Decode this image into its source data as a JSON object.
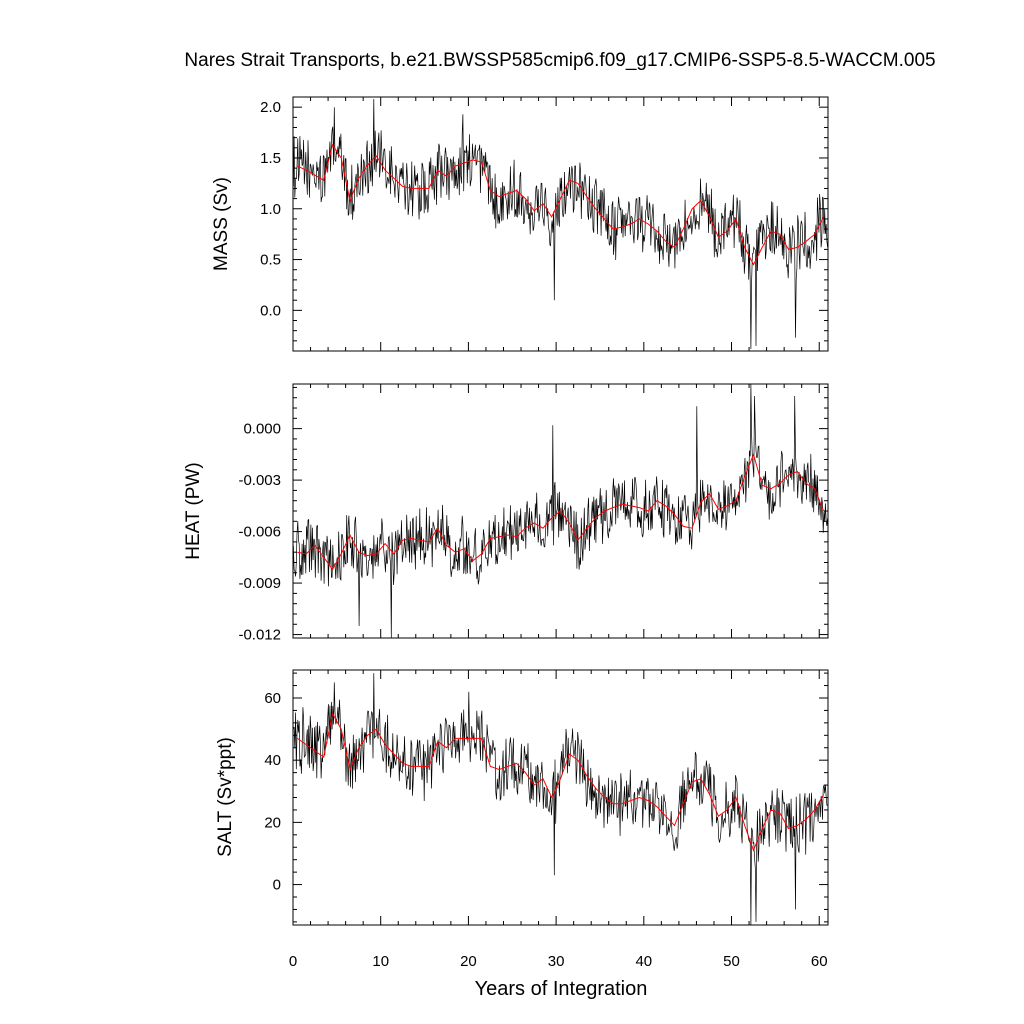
{
  "chart_data": {
    "title": "Nares Strait Transports, b.e21.BWSSP585cmip6.f09_g17.CMIP6-SSP5-8.5-WACCM.005",
    "xlabel": "Years of Integration",
    "xlim": [
      0,
      61
    ],
    "xticks": [
      0,
      10,
      20,
      30,
      40,
      50,
      60
    ],
    "xtick_labels": [
      "0",
      "10",
      "20",
      "30",
      "40",
      "50",
      "60"
    ],
    "colors": {
      "monthly": "#000000",
      "annual": "#ff0000"
    },
    "panels": [
      {
        "type": "line",
        "ylabel": "MASS (Sv)",
        "ylim": [
          -0.4,
          2.1
        ],
        "yticks": [
          0.0,
          0.5,
          1.0,
          1.5,
          2.0
        ],
        "ytick_labels": [
          "0.0",
          "0.5",
          "1.0",
          "1.5",
          "2.0"
        ],
        "annual_years": [
          0.5,
          1.5,
          2.5,
          3.5,
          4.5,
          5.5,
          6.5,
          7.5,
          8.5,
          9.5,
          10.5,
          11.5,
          12.5,
          13.5,
          14.5,
          15.5,
          16.5,
          17.5,
          18.5,
          19.5,
          20.5,
          21.5,
          22.5,
          23.5,
          24.5,
          25.5,
          26.5,
          27.5,
          28.5,
          29.5,
          30.5,
          31.5,
          32.5,
          33.5,
          34.5,
          35.5,
          36.5,
          37.5,
          38.5,
          39.5,
          40.5,
          41.5,
          42.5,
          43.5,
          44.5,
          45.5,
          46.5,
          47.5,
          48.5,
          49.5,
          50.5,
          51.5,
          52.5,
          53.5,
          54.5,
          55.5,
          56.5,
          57.5,
          58.5,
          59.5,
          60.5
        ],
        "annual_values": [
          1.42,
          1.38,
          1.33,
          1.28,
          1.63,
          1.5,
          1.08,
          1.3,
          1.43,
          1.52,
          1.38,
          1.3,
          1.22,
          1.2,
          1.2,
          1.2,
          1.38,
          1.32,
          1.42,
          1.45,
          1.48,
          1.46,
          1.18,
          1.12,
          1.15,
          1.18,
          1.1,
          0.98,
          1.05,
          0.92,
          1.1,
          1.28,
          1.25,
          1.12,
          1.0,
          0.9,
          0.8,
          0.82,
          0.85,
          0.9,
          0.85,
          0.78,
          0.68,
          0.62,
          0.8,
          1.0,
          1.08,
          0.92,
          0.72,
          0.78,
          0.9,
          0.62,
          0.45,
          0.62,
          0.78,
          0.75,
          0.6,
          0.62,
          0.68,
          0.75,
          0.92
        ],
        "monthly_base": [
          1.42,
          1.38,
          1.33,
          1.28,
          1.63,
          1.5,
          1.08,
          1.3,
          1.43,
          1.52,
          1.38,
          1.3,
          1.22,
          1.2,
          1.2,
          1.2,
          1.38,
          1.32,
          1.42,
          1.45,
          1.48,
          1.46,
          1.18,
          1.12,
          1.15,
          1.18,
          1.1,
          0.98,
          1.05,
          0.92,
          1.1,
          1.28,
          1.25,
          1.12,
          1.0,
          0.9,
          0.8,
          0.82,
          0.85,
          0.9,
          0.85,
          0.78,
          0.68,
          0.62,
          0.8,
          1.0,
          1.08,
          0.92,
          0.72,
          0.78,
          0.9,
          0.62,
          0.45,
          0.62,
          0.78,
          0.75,
          0.6,
          0.62,
          0.68,
          0.75,
          0.92
        ],
        "monthly_amplitude": 0.27,
        "monthly_extremes": [
          [
            9.2,
            2.08
          ],
          [
            4.7,
            2.0
          ],
          [
            52.2,
            -0.38
          ],
          [
            52.8,
            -0.35
          ],
          [
            29.8,
            0.1
          ],
          [
            57.3,
            -0.27
          ],
          [
            19.4,
            1.93
          ]
        ]
      },
      {
        "type": "line",
        "ylabel": "HEAT (PW)",
        "ylim": [
          -0.0122,
          0.0026
        ],
        "yticks": [
          -0.012,
          -0.009,
          -0.006,
          -0.003,
          0.0
        ],
        "ytick_labels": [
          "-0.012",
          "-0.009",
          "-0.006",
          "-0.003",
          "0.000"
        ],
        "annual_years": [
          0.5,
          1.5,
          2.5,
          3.5,
          4.5,
          5.5,
          6.5,
          7.5,
          8.5,
          9.5,
          10.5,
          11.5,
          12.5,
          13.5,
          14.5,
          15.5,
          16.5,
          17.5,
          18.5,
          19.5,
          20.5,
          21.5,
          22.5,
          23.5,
          24.5,
          25.5,
          26.5,
          27.5,
          28.5,
          29.5,
          30.5,
          31.5,
          32.5,
          33.5,
          34.5,
          35.5,
          36.5,
          37.5,
          38.5,
          39.5,
          40.5,
          41.5,
          42.5,
          43.5,
          44.5,
          45.5,
          46.5,
          47.5,
          48.5,
          49.5,
          50.5,
          51.5,
          52.5,
          53.5,
          54.5,
          55.5,
          56.5,
          57.5,
          58.5,
          59.5,
          60.5
        ],
        "annual_values": [
          -0.0072,
          -0.0073,
          -0.0068,
          -0.0075,
          -0.0082,
          -0.0073,
          -0.0062,
          -0.0072,
          -0.0074,
          -0.0073,
          -0.0067,
          -0.0073,
          -0.0065,
          -0.0064,
          -0.0065,
          -0.0066,
          -0.0058,
          -0.0068,
          -0.0072,
          -0.007,
          -0.0077,
          -0.0073,
          -0.0064,
          -0.0063,
          -0.0062,
          -0.0063,
          -0.0058,
          -0.0055,
          -0.0058,
          -0.0052,
          -0.0048,
          -0.0055,
          -0.0065,
          -0.0058,
          -0.0052,
          -0.0048,
          -0.0046,
          -0.0044,
          -0.0045,
          -0.0046,
          -0.0048,
          -0.0042,
          -0.0045,
          -0.005,
          -0.0057,
          -0.0058,
          -0.0043,
          -0.0038,
          -0.0047,
          -0.0045,
          -0.0042,
          -0.0028,
          -0.0015,
          -0.0033,
          -0.0035,
          -0.0032,
          -0.0027,
          -0.0025,
          -0.0032,
          -0.0035,
          -0.0048
        ],
        "monthly_base": [
          -0.0072,
          -0.0073,
          -0.0068,
          -0.0075,
          -0.0082,
          -0.0073,
          -0.0062,
          -0.0072,
          -0.0074,
          -0.0073,
          -0.0067,
          -0.0073,
          -0.0065,
          -0.0064,
          -0.0065,
          -0.0066,
          -0.0058,
          -0.0068,
          -0.0072,
          -0.007,
          -0.0077,
          -0.0073,
          -0.0064,
          -0.0063,
          -0.0062,
          -0.0063,
          -0.0058,
          -0.0055,
          -0.0058,
          -0.0052,
          -0.0048,
          -0.0055,
          -0.0065,
          -0.0058,
          -0.0052,
          -0.0048,
          -0.0046,
          -0.0044,
          -0.0045,
          -0.0046,
          -0.0048,
          -0.0042,
          -0.0045,
          -0.005,
          -0.0057,
          -0.0058,
          -0.0043,
          -0.0038,
          -0.0047,
          -0.0045,
          -0.0042,
          -0.0028,
          -0.0015,
          -0.0033,
          -0.0035,
          -0.0032,
          -0.0027,
          -0.0025,
          -0.0032,
          -0.0035,
          -0.0048
        ],
        "monthly_amplitude": 0.0016,
        "monthly_extremes": [
          [
            11.2,
            -0.0122
          ],
          [
            7.5,
            -0.0115
          ],
          [
            52.2,
            0.0026
          ],
          [
            52.6,
            0.0019
          ],
          [
            29.6,
            0.0002
          ],
          [
            57.2,
            0.0019
          ],
          [
            46.0,
            0.0013
          ]
        ]
      },
      {
        "type": "line",
        "ylabel": "SALT (Sv*ppt)",
        "ylim": [
          -13,
          69
        ],
        "yticks": [
          0,
          20,
          40,
          60
        ],
        "ytick_labels": [
          "0",
          "20",
          "40",
          "60"
        ],
        "annual_years": [
          0.5,
          1.5,
          2.5,
          3.5,
          4.5,
          5.5,
          6.5,
          7.5,
          8.5,
          9.5,
          10.5,
          11.5,
          12.5,
          13.5,
          14.5,
          15.5,
          16.5,
          17.5,
          18.5,
          19.5,
          20.5,
          21.5,
          22.5,
          23.5,
          24.5,
          25.5,
          26.5,
          27.5,
          28.5,
          29.5,
          30.5,
          31.5,
          32.5,
          33.5,
          34.5,
          35.5,
          36.5,
          37.5,
          38.5,
          39.5,
          40.5,
          41.5,
          42.5,
          43.5,
          44.5,
          45.5,
          46.5,
          47.5,
          48.5,
          49.5,
          50.5,
          51.5,
          52.5,
          53.5,
          54.5,
          55.5,
          56.5,
          57.5,
          58.5,
          59.5,
          60.5
        ],
        "annual_values": [
          47,
          45,
          43,
          41,
          55,
          50,
          37,
          44,
          48,
          50,
          45,
          42,
          39,
          38,
          38,
          38,
          46,
          44,
          47,
          47,
          47,
          47,
          38,
          37,
          38,
          39,
          36,
          32,
          34,
          28,
          34,
          42,
          40,
          35,
          31,
          28,
          26,
          26,
          27,
          28,
          27,
          25,
          22,
          19,
          26,
          33,
          34,
          29,
          22,
          24,
          28,
          19,
          11,
          18,
          24,
          23,
          18,
          19,
          21,
          24,
          29
        ],
        "monthly_base": [
          47,
          45,
          43,
          41,
          55,
          50,
          37,
          44,
          48,
          50,
          45,
          42,
          39,
          38,
          38,
          38,
          46,
          44,
          47,
          47,
          47,
          47,
          38,
          37,
          38,
          39,
          36,
          32,
          34,
          28,
          34,
          42,
          40,
          35,
          31,
          28,
          26,
          26,
          27,
          28,
          27,
          25,
          22,
          19,
          26,
          33,
          34,
          29,
          22,
          24,
          28,
          19,
          11,
          18,
          24,
          23,
          18,
          19,
          21,
          24,
          29
        ],
        "monthly_amplitude": 9,
        "monthly_extremes": [
          [
            9.2,
            68
          ],
          [
            4.7,
            65
          ],
          [
            52.2,
            -13
          ],
          [
            52.8,
            -12
          ],
          [
            29.8,
            3
          ],
          [
            57.3,
            -8
          ],
          [
            20.0,
            62
          ]
        ]
      }
    ]
  }
}
